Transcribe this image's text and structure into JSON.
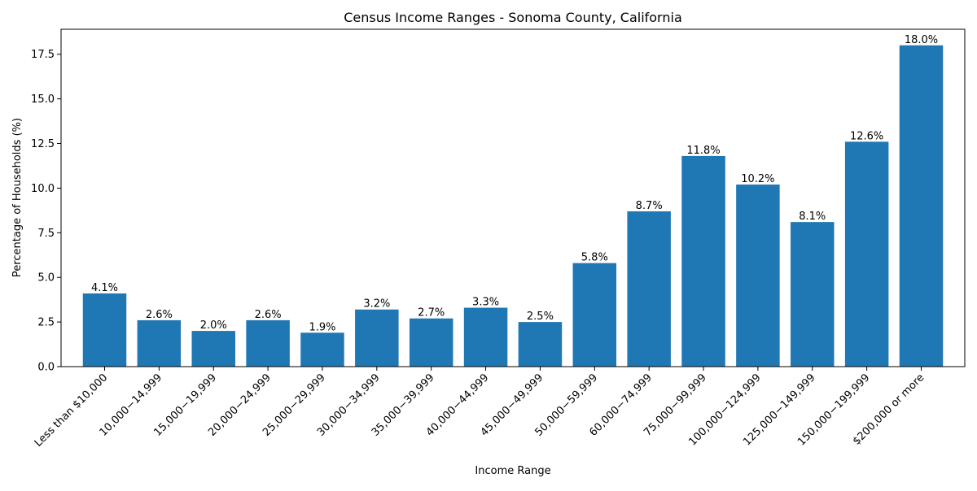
{
  "chart_data": {
    "type": "bar",
    "title": "Census Income Ranges - Sonoma County, California",
    "xlabel": "Income Range",
    "ylabel": "Percentage of Households (%)",
    "ylim": [
      0,
      18.9
    ],
    "yticks": [
      0.0,
      2.5,
      5.0,
      7.5,
      10.0,
      12.5,
      15.0,
      17.5
    ],
    "ytick_labels": [
      "0.0",
      "2.5",
      "5.0",
      "7.5",
      "10.0",
      "12.5",
      "15.0",
      "17.5"
    ],
    "grid": false,
    "categories": [
      "Less than $10,000",
      "10,000−14,999",
      "15,000−19,999",
      "20,000−24,999",
      "25,000−29,999",
      "30,000−34,999",
      "35,000−39,999",
      "40,000−44,999",
      "45,000−49,999",
      "50,000−59,999",
      "60,000−74,999",
      "75,000−99,999",
      "100,000−124,999",
      "125,000−149,999",
      "150,000−199,999",
      "$200,000 or more"
    ],
    "values": [
      4.1,
      2.6,
      2.0,
      2.6,
      1.9,
      3.2,
      2.7,
      3.3,
      2.5,
      5.8,
      8.7,
      11.8,
      10.2,
      8.1,
      12.6,
      18.0
    ],
    "data_labels": [
      "4.1%",
      "2.6%",
      "2.0%",
      "2.6%",
      "1.9%",
      "3.2%",
      "2.7%",
      "3.3%",
      "2.5%",
      "5.8%",
      "8.7%",
      "11.8%",
      "10.2%",
      "8.1%",
      "12.6%",
      "18.0%"
    ],
    "bar_color": "#1f77b4"
  }
}
